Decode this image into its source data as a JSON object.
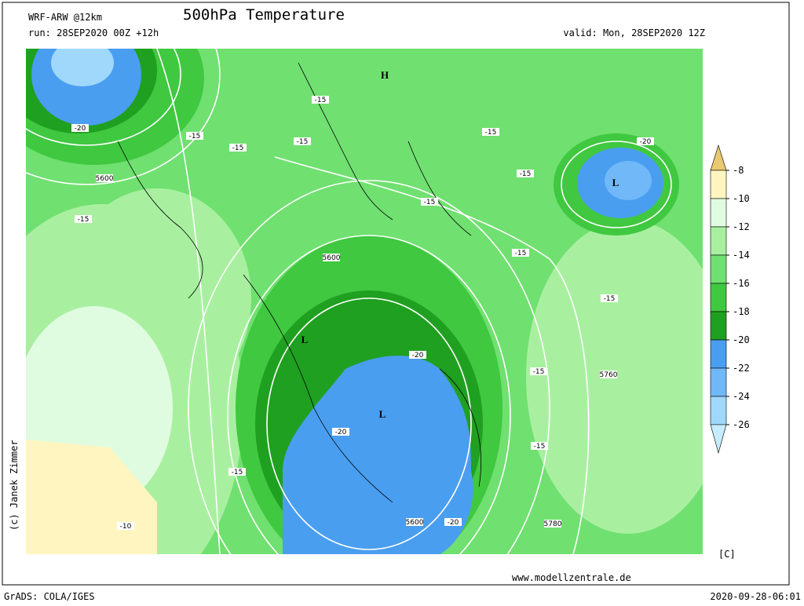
{
  "header": {
    "model": "WRF-ARW @12km",
    "title": "500hPa Temperature",
    "run": "run: 28SEP2020 00Z +12h",
    "valid": "valid: Mon, 28SEP2020 12Z"
  },
  "map": {
    "labels": [
      "H",
      "-15",
      "-15",
      "-15",
      "-15",
      "-20",
      "5600",
      "-15",
      "-15",
      "-20",
      "L",
      "-15",
      "-15",
      "5600",
      "-15",
      "-15",
      "L",
      "-20",
      "-15",
      "5760",
      "L",
      "-20",
      "-15",
      "-15",
      "-10",
      "5600",
      "-20",
      "5780"
    ]
  },
  "colorbar": {
    "unit": "[C]",
    "levels": [
      -8,
      -10,
      -12,
      -14,
      -16,
      -18,
      -20,
      -22,
      -24,
      -26
    ],
    "colors": [
      "#e8c870",
      "#fff5c0",
      "#e0fce0",
      "#a8f0a0",
      "#70e070",
      "#40c840",
      "#20a020",
      "#4a9ef0",
      "#70b8f8",
      "#a0d8fc",
      "#c8ecff"
    ]
  },
  "footer": {
    "credit": "(c) Janek Zimmer",
    "site": "www.modellzentrale.de",
    "software": "GrADS: COLA/IGES",
    "timestamp": "2020-09-28-06:01"
  }
}
